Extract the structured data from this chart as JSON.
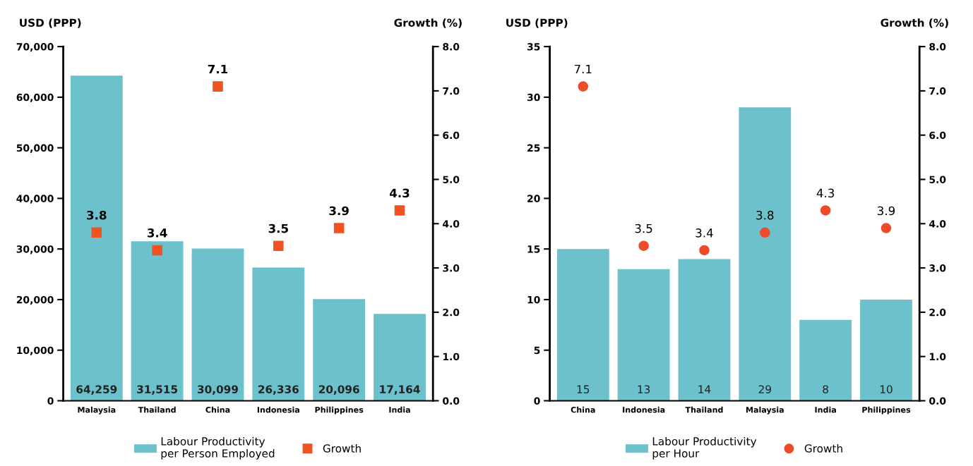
{
  "chart_data": [
    {
      "type": "bar",
      "ylabel": "USD (PPP)",
      "y2label": "Growth (%)",
      "categories": [
        "Malaysia",
        "Thailand",
        "China",
        "Indonesia",
        "Philippines",
        "India"
      ],
      "ylim": [
        0,
        70000
      ],
      "yticks": [
        0,
        {
          "value": 10000,
          "label": "10,000"
        },
        {
          "value": 20000,
          "label": "20,000"
        },
        {
          "value": 30000,
          "label": "30,000"
        },
        {
          "value": 40000,
          "label": "40,000"
        },
        {
          "value": 50000,
          "label": "50,000"
        },
        {
          "value": 60000,
          "label": "60,000"
        },
        {
          "value": 70000,
          "label": "70,000"
        }
      ],
      "y2lim": [
        0,
        8
      ],
      "y2ticks": [
        {
          "value": 0,
          "label": "0.0"
        },
        {
          "value": 1,
          "label": "1.0"
        },
        {
          "value": 2,
          "label": "2.0"
        },
        {
          "value": 3,
          "label": "3.0"
        },
        {
          "value": 4,
          "label": "4.0"
        },
        {
          "value": 5,
          "label": "5.0"
        },
        {
          "value": 6,
          "label": "6.0"
        },
        {
          "value": 7,
          "label": "7.0"
        },
        {
          "value": 8,
          "label": "8.0"
        }
      ],
      "series": [
        {
          "name": "Labour Productivity\nper Person Employed",
          "color": "#6cc1cc",
          "values": [
            64259,
            31515,
            30099,
            26336,
            20096,
            17164
          ],
          "value_labels": [
            "64,259",
            "31,515",
            "30,099",
            "26,336",
            "20,096",
            "17,164"
          ]
        },
        {
          "name": "Growth",
          "type": "scatter",
          "axis": "y2",
          "marker": "square",
          "color": "#f05323",
          "values": [
            3.8,
            3.4,
            7.1,
            3.5,
            3.9,
            4.3
          ],
          "value_labels": [
            "3.8",
            "3.4",
            "7.1",
            "3.5",
            "3.9",
            "4.3"
          ]
        }
      ],
      "legend": "bottom",
      "grid": false
    },
    {
      "type": "bar",
      "ylabel": "USD (PPP)",
      "y2label": "Growth (%)",
      "categories": [
        "China",
        "Indonesia",
        "Thailand",
        "Malaysia",
        "India",
        "Philippines"
      ],
      "ylim": [
        0,
        35
      ],
      "yticks": [
        0,
        5,
        10,
        15,
        20,
        25,
        30,
        35
      ],
      "y2lim": [
        0,
        8
      ],
      "y2ticks": [
        {
          "value": 0,
          "label": "0.0"
        },
        {
          "value": 1,
          "label": "1.0"
        },
        {
          "value": 2,
          "label": "2.0"
        },
        {
          "value": 3,
          "label": "3.0"
        },
        {
          "value": 4,
          "label": "4.0"
        },
        {
          "value": 5,
          "label": "5.0"
        },
        {
          "value": 6,
          "label": "6.0"
        },
        {
          "value": 7,
          "label": "7.0"
        },
        {
          "value": 8,
          "label": "8.0"
        }
      ],
      "series": [
        {
          "name": "Labour Productivity\nper Hour",
          "color": "#6cc1cc",
          "values": [
            15,
            13,
            14,
            29,
            8,
            10
          ],
          "value_labels": [
            "15",
            "13",
            "14",
            "29",
            "8",
            "10"
          ]
        },
        {
          "name": "Growth",
          "type": "scatter",
          "axis": "y2",
          "marker": "circle",
          "color": "#ee4b2b",
          "values": [
            7.1,
            3.5,
            3.4,
            3.8,
            4.3,
            3.9
          ],
          "value_labels": [
            "7.1",
            "3.5",
            "3.4",
            "3.8",
            "4.3",
            "3.9"
          ]
        }
      ],
      "legend": "bottom",
      "grid": false
    }
  ]
}
